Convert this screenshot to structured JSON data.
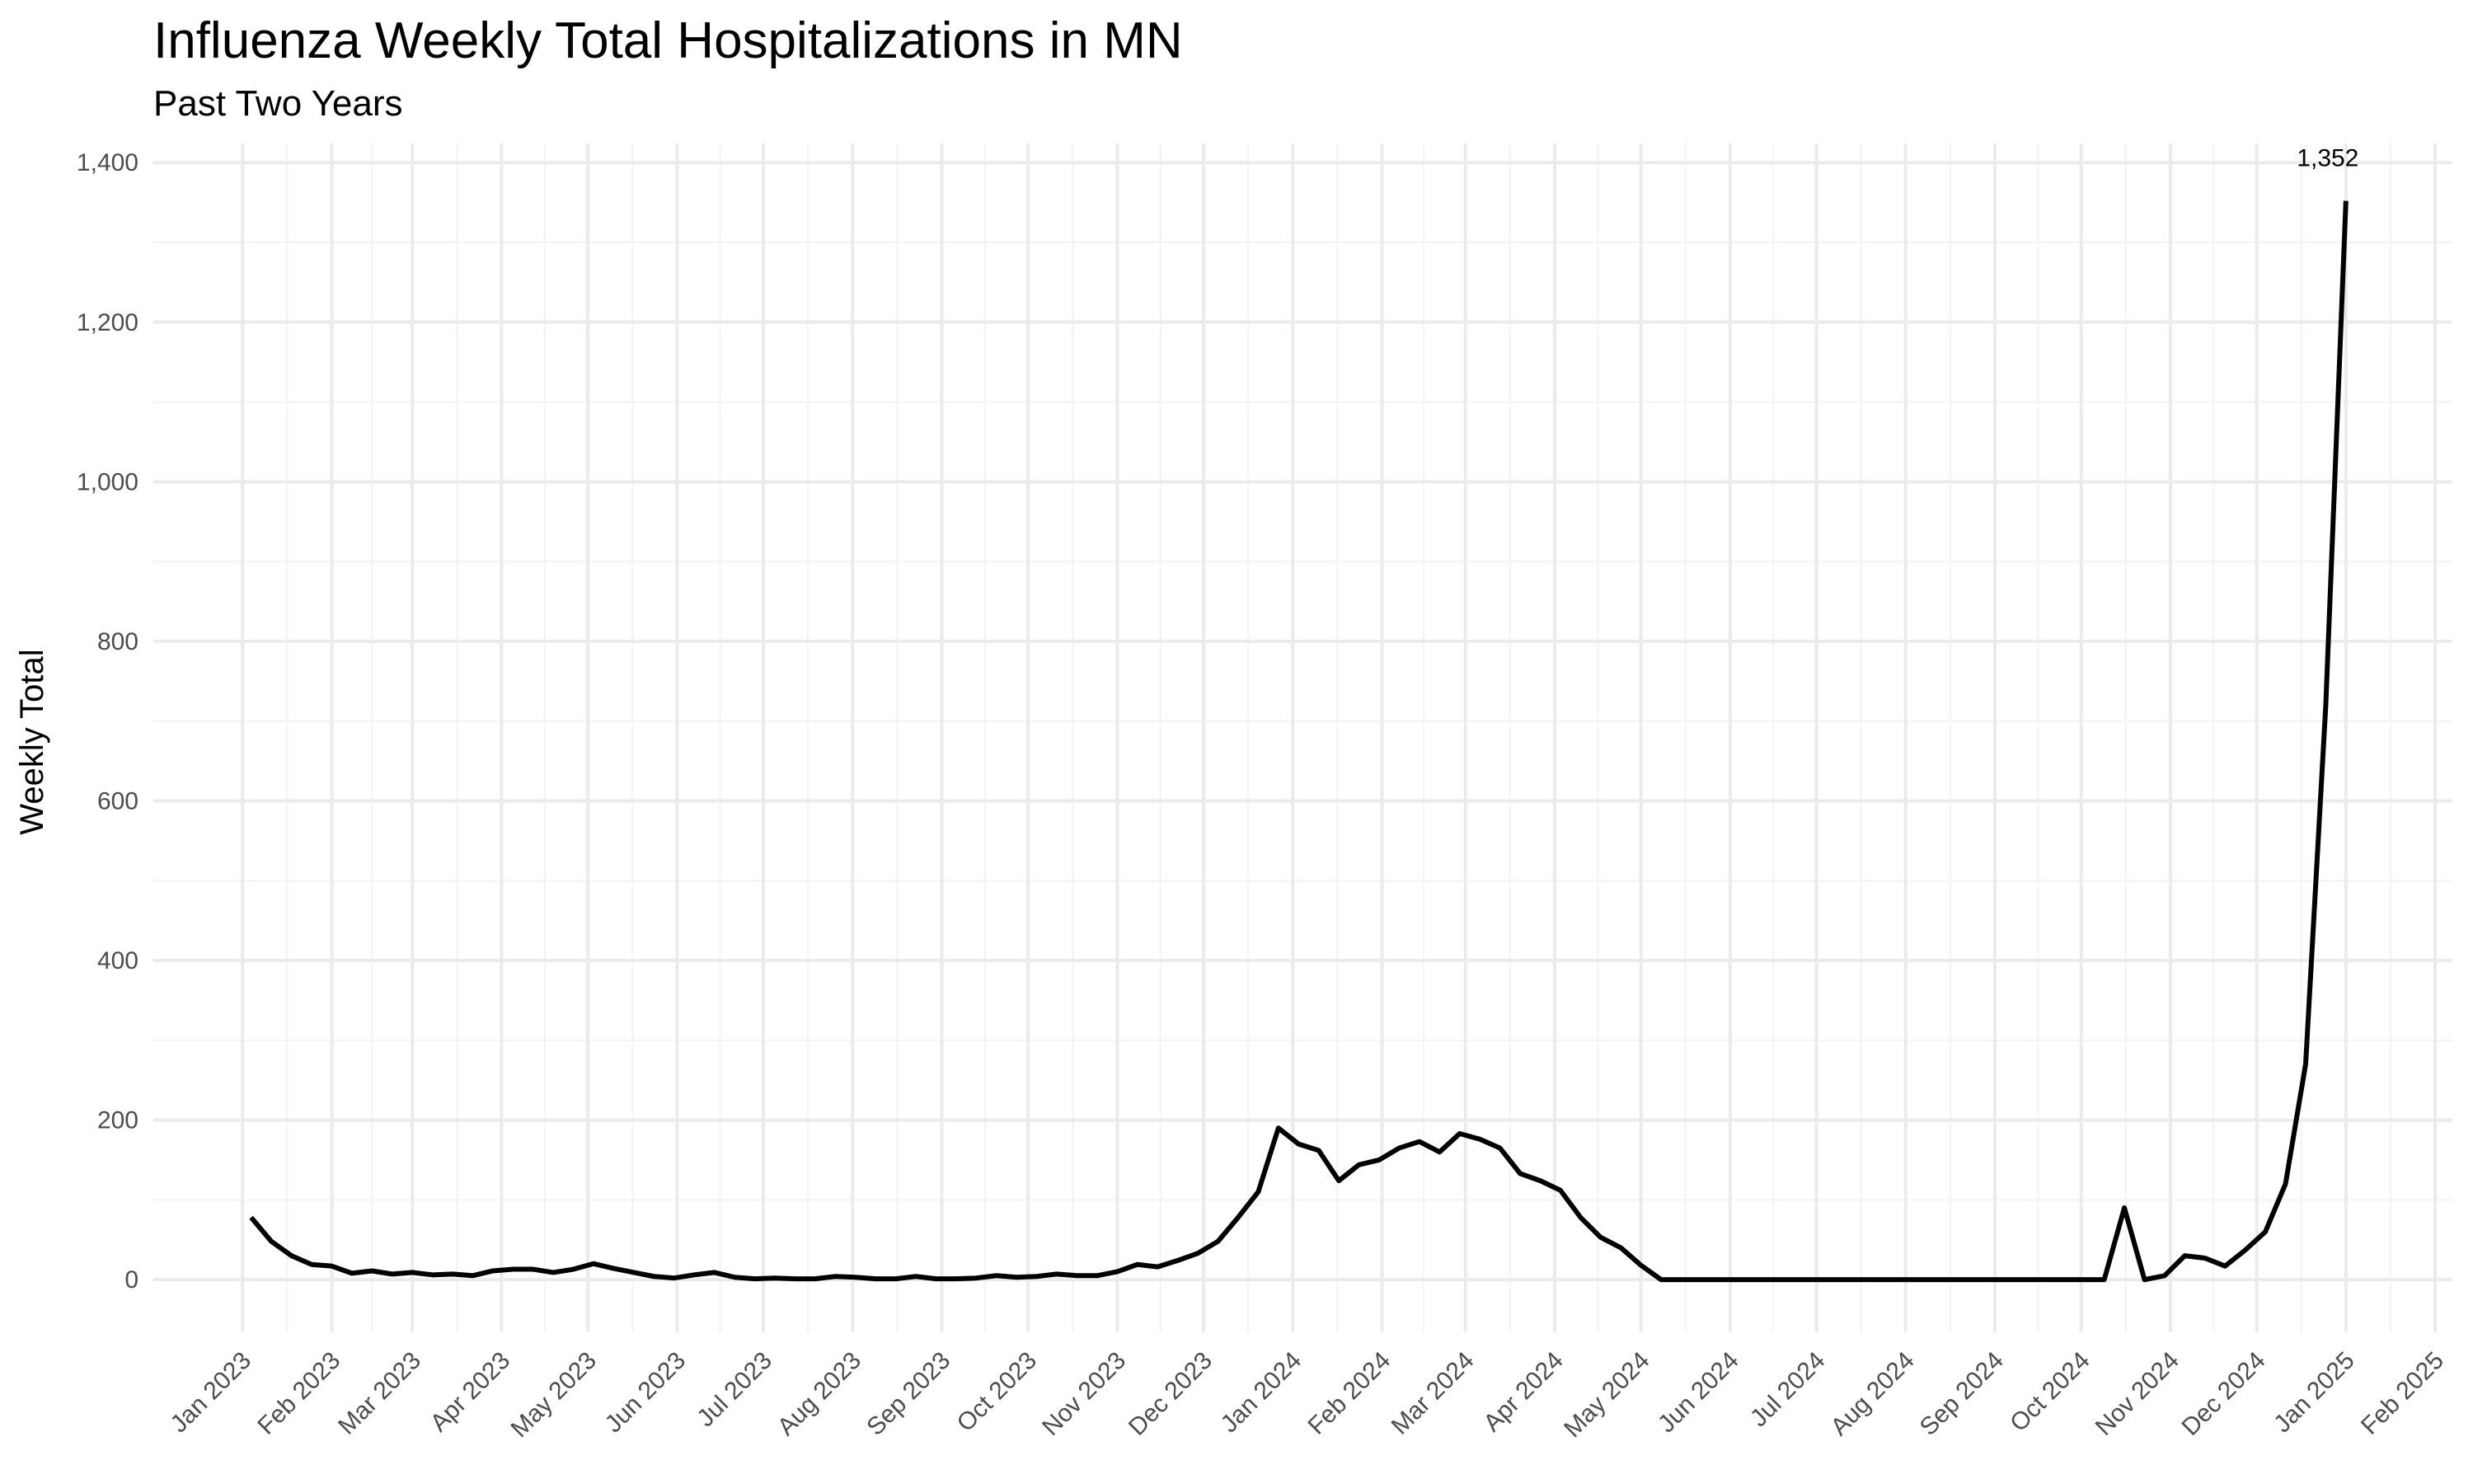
{
  "chart_data": {
    "type": "line",
    "title": "Influenza Weekly Total Hospitalizations in MN",
    "subtitle": "Past Two Years",
    "y_label": "Weekly Total",
    "color": "#000000",
    "grid": true,
    "x": [
      3,
      10,
      17,
      24,
      31,
      38,
      45,
      52,
      59,
      66,
      73,
      80,
      87,
      94,
      101,
      108,
      115,
      122,
      129,
      136,
      143,
      150,
      157,
      164,
      171,
      178,
      185,
      192,
      199,
      206,
      213,
      220,
      227,
      234,
      241,
      248,
      255,
      262,
      269,
      276,
      283,
      290,
      297,
      304,
      311,
      318,
      325,
      332,
      339,
      346,
      353,
      360,
      367,
      374,
      381,
      388,
      395,
      402,
      409,
      416,
      423,
      430,
      437,
      444,
      451,
      458,
      465,
      472,
      479,
      486,
      493,
      500,
      507,
      514,
      521,
      528,
      535,
      542,
      549,
      556,
      563,
      570,
      577,
      584,
      591,
      598,
      605,
      612,
      619,
      626,
      633,
      640,
      647,
      654,
      661,
      668,
      675,
      682,
      689,
      696,
      703,
      710,
      717,
      724,
      731
    ],
    "values": [
      78,
      48,
      30,
      19,
      17,
      8,
      11,
      7,
      9,
      6,
      7,
      5,
      11,
      13,
      13,
      9,
      13,
      20,
      14,
      9,
      4,
      2,
      6,
      9,
      3,
      1,
      2,
      1,
      1,
      4,
      3,
      1,
      1,
      4,
      1,
      1,
      2,
      5,
      3,
      4,
      7,
      5,
      5,
      10,
      19,
      16,
      24,
      33,
      48,
      78,
      110,
      190,
      170,
      162,
      124,
      144,
      150,
      165,
      173,
      160,
      183,
      176,
      165,
      133,
      124,
      112,
      78,
      53,
      40,
      18,
      0,
      0,
      0,
      0,
      0,
      0,
      0,
      0,
      0,
      0,
      0,
      0,
      0,
      0,
      0,
      0,
      0,
      0,
      0,
      0,
      0,
      0,
      0,
      90,
      0,
      5,
      30,
      27,
      17,
      37,
      60,
      120,
      270,
      720,
      1352
    ],
    "value_labels": [
      null,
      null,
      null,
      null,
      null,
      null,
      null,
      null,
      null,
      null,
      null,
      null,
      null,
      null,
      null,
      null,
      null,
      null,
      null,
      null,
      null,
      null,
      null,
      null,
      null,
      null,
      null,
      null,
      null,
      null,
      null,
      null,
      null,
      null,
      null,
      null,
      null,
      null,
      null,
      null,
      null,
      null,
      null,
      null,
      null,
      null,
      null,
      null,
      null,
      null,
      null,
      null,
      null,
      null,
      null,
      null,
      null,
      null,
      null,
      null,
      null,
      null,
      null,
      null,
      null,
      null,
      null,
      null,
      null,
      null,
      null,
      null,
      null,
      null,
      null,
      null,
      null,
      null,
      null,
      null,
      null,
      null,
      null,
      null,
      null,
      null,
      null,
      null,
      null,
      null,
      null,
      null,
      null,
      null,
      null,
      null,
      null,
      null,
      null,
      null,
      null,
      null,
      null,
      null,
      "1,352"
    ],
    "xlim": [
      -31,
      768
    ],
    "xticks": [
      {
        "value": 0,
        "label": "Jan 2023"
      },
      {
        "value": 31,
        "label": "Feb 2023"
      },
      {
        "value": 59,
        "label": "Mar 2023"
      },
      {
        "value": 90,
        "label": "Apr 2023"
      },
      {
        "value": 120,
        "label": "May 2023"
      },
      {
        "value": 151,
        "label": "Jun 2023"
      },
      {
        "value": 181,
        "label": "Jul 2023"
      },
      {
        "value": 212,
        "label": "Aug 2023"
      },
      {
        "value": 243,
        "label": "Sep 2023"
      },
      {
        "value": 273,
        "label": "Oct 2023"
      },
      {
        "value": 304,
        "label": "Nov 2023"
      },
      {
        "value": 334,
        "label": "Dec 2023"
      },
      {
        "value": 365,
        "label": "Jan 2024"
      },
      {
        "value": 396,
        "label": "Feb 2024"
      },
      {
        "value": 425,
        "label": "Mar 2024"
      },
      {
        "value": 456,
        "label": "Apr 2024"
      },
      {
        "value": 486,
        "label": "May 2024"
      },
      {
        "value": 517,
        "label": "Jun 2024"
      },
      {
        "value": 547,
        "label": "Jul 2024"
      },
      {
        "value": 578,
        "label": "Aug 2024"
      },
      {
        "value": 609,
        "label": "Sep 2024"
      },
      {
        "value": 639,
        "label": "Oct 2024"
      },
      {
        "value": 670,
        "label": "Nov 2024"
      },
      {
        "value": 700,
        "label": "Dec 2024"
      },
      {
        "value": 731,
        "label": "Jan 2025"
      },
      {
        "value": 762,
        "label": "Feb 2025"
      }
    ],
    "ylim": [
      -66,
      1424
    ],
    "yticks": [
      0,
      200,
      400,
      600,
      800,
      {
        "value": 1000,
        "label": "1,000"
      },
      {
        "value": 1200,
        "label": "1,200"
      },
      {
        "value": 1400,
        "label": "1,400"
      }
    ]
  }
}
